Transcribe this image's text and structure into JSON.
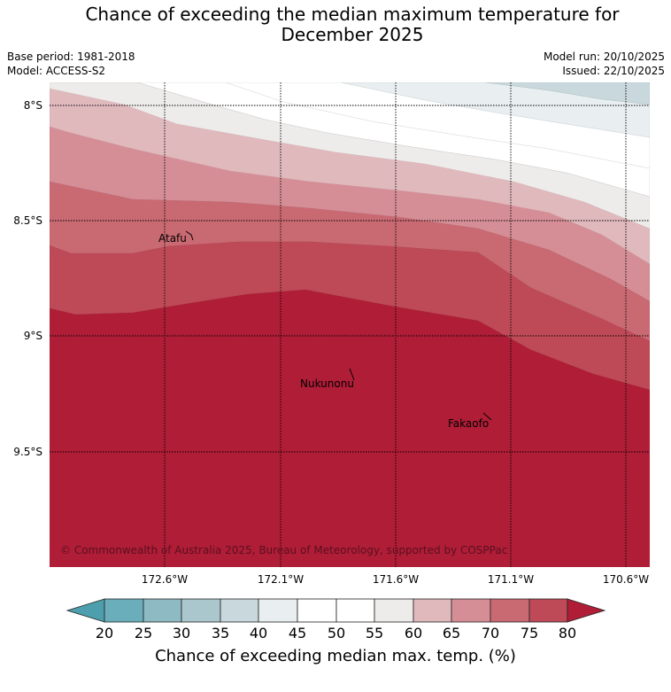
{
  "header": {
    "title": "Chance of exceeding the median maximum temperature for December 2025",
    "title_line1": "Chance of exceeding the median maximum temperature for",
    "title_line2": "December 2025",
    "base_period": "Base period: 1981-2018",
    "model": "Model: ACCESS-S2",
    "model_run": "Model run: 20/10/2025",
    "issued": "Issued: 22/10/2025"
  },
  "map": {
    "lat_labels": [
      "8°S",
      "8.5°S",
      "9°S",
      "9.5°S"
    ],
    "lon_labels": [
      "172.6°W",
      "172.1°W",
      "171.6°W",
      "171.1°W",
      "170.6°W"
    ],
    "places": [
      "Atafu",
      "Nukunonu",
      "Fakaofo"
    ],
    "copyright": "© Commonwealth of Australia 2025, Bureau of Meteorology, supported by COSPPac"
  },
  "legend": {
    "ticks": [
      "20",
      "25",
      "30",
      "35",
      "40",
      "45",
      "50",
      "55",
      "60",
      "65",
      "70",
      "75",
      "80"
    ],
    "label": "Chance of exceeding median max. temp. (%)",
    "colors": [
      "#4d9fae",
      "#6aaebb",
      "#8ebac4",
      "#a9c7cc",
      "#c9d8dc",
      "#e9eff1",
      "#ffffff",
      "#ffffff",
      "#eeeceb",
      "#e0b9bd",
      "#d58e96",
      "#c96972",
      "#bf4a57",
      "#b01d37"
    ]
  }
}
